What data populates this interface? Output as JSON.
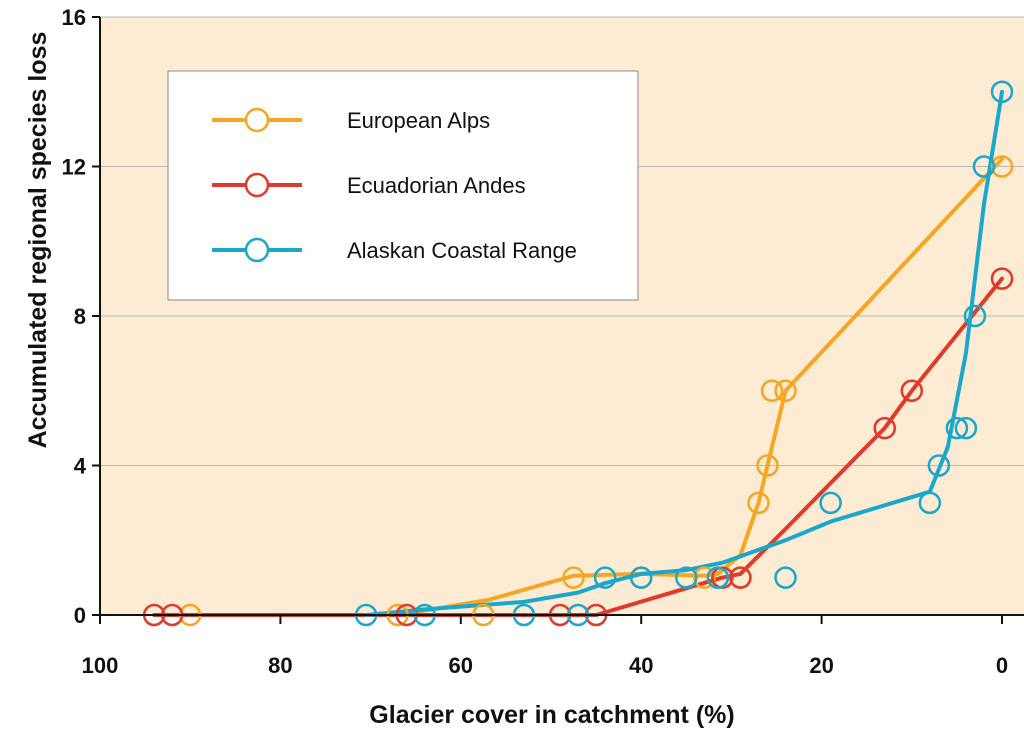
{
  "chart_data": {
    "type": "line",
    "title": "",
    "xlabel": "Glacier cover in catchment (%)",
    "ylabel": "Accumulated regional species loss",
    "xlim": [
      100,
      0
    ],
    "ylim": [
      0,
      16
    ],
    "x_reversed": true,
    "xticks": [
      100,
      80,
      60,
      40,
      20,
      0
    ],
    "yticks": [
      0,
      4,
      8,
      12,
      16
    ],
    "grid": "horizontal",
    "legend_position": "top-left",
    "background": "#fdebd3",
    "series": [
      {
        "name": "European Alps",
        "color": "#f5a623",
        "points": [
          [
            90,
            0
          ],
          [
            67,
            0
          ],
          [
            57.5,
            0
          ],
          [
            47.5,
            1
          ],
          [
            40,
            1
          ],
          [
            33,
            1
          ],
          [
            31.5,
            1
          ],
          [
            29,
            1
          ],
          [
            27,
            3
          ],
          [
            26,
            4
          ],
          [
            25.5,
            6
          ],
          [
            24,
            6
          ],
          [
            0,
            12
          ]
        ],
        "line": [
          [
            90,
            0
          ],
          [
            67,
            0
          ],
          [
            57,
            0.4
          ],
          [
            47.5,
            1.05
          ],
          [
            40,
            1.1
          ],
          [
            33,
            1.05
          ],
          [
            31.5,
            1.1
          ],
          [
            29,
            1.6
          ],
          [
            27,
            3
          ],
          [
            26,
            4
          ],
          [
            24,
            6
          ],
          [
            0,
            12.2
          ]
        ]
      },
      {
        "name": "Ecuadorian Andes",
        "color": "#e03a2b",
        "points": [
          [
            94,
            0
          ],
          [
            92,
            0
          ],
          [
            66,
            0
          ],
          [
            49,
            0
          ],
          [
            45,
            0
          ],
          [
            31,
            1
          ],
          [
            29,
            1
          ],
          [
            13,
            5
          ],
          [
            10,
            6
          ],
          [
            0,
            9
          ]
        ],
        "line": [
          [
            94,
            0
          ],
          [
            92,
            0
          ],
          [
            66,
            0
          ],
          [
            49,
            0
          ],
          [
            45,
            0
          ],
          [
            38,
            0.5
          ],
          [
            31,
            1
          ],
          [
            29,
            1.1
          ],
          [
            24,
            2.3
          ],
          [
            13,
            5
          ],
          [
            10,
            6
          ],
          [
            0,
            9
          ]
        ]
      },
      {
        "name": "Alaskan Coastal Range",
        "color": "#1aa7cc",
        "points": [
          [
            70.5,
            0
          ],
          [
            64,
            0
          ],
          [
            53,
            0
          ],
          [
            47,
            0
          ],
          [
            44,
            1
          ],
          [
            40,
            1
          ],
          [
            35,
            1
          ],
          [
            31.5,
            1
          ],
          [
            24,
            1
          ],
          [
            19,
            3
          ],
          [
            8,
            3
          ],
          [
            7,
            4
          ],
          [
            5,
            5
          ],
          [
            4,
            5
          ],
          [
            3,
            8
          ],
          [
            2,
            12
          ],
          [
            0,
            14
          ]
        ],
        "line": [
          [
            70.5,
            0
          ],
          [
            64,
            0.15
          ],
          [
            53,
            0.35
          ],
          [
            47,
            0.6
          ],
          [
            44,
            0.85
          ],
          [
            40,
            1.1
          ],
          [
            35,
            1.2
          ],
          [
            31,
            1.4
          ],
          [
            24,
            2
          ],
          [
            19,
            2.5
          ],
          [
            8,
            3.3
          ],
          [
            6,
            4.5
          ],
          [
            4,
            7
          ],
          [
            2,
            11
          ],
          [
            0,
            14
          ]
        ]
      }
    ]
  }
}
